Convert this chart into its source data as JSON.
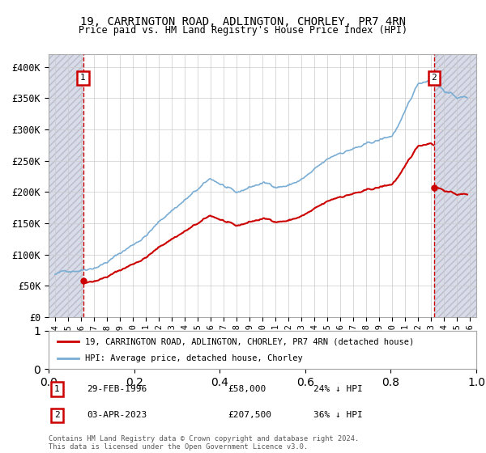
{
  "title": "19, CARRINGTON ROAD, ADLINGTON, CHORLEY, PR7 4RN",
  "subtitle": "Price paid vs. HM Land Registry's House Price Index (HPI)",
  "hpi_color": "#7aadd4",
  "price_color": "#cc0000",
  "sale1": {
    "date_num": 1996.16,
    "price": 58000,
    "label": "1",
    "date_str": "29-FEB-1996",
    "pct": "24% ↓ HPI"
  },
  "sale2": {
    "date_num": 2023.25,
    "price": 207500,
    "label": "2",
    "date_str": "03-APR-2023",
    "pct": "36% ↓ HPI"
  },
  "xmin": 1993.5,
  "xmax": 2026.5,
  "ymin": 0,
  "ymax": 420000,
  "yticks": [
    0,
    50000,
    100000,
    150000,
    200000,
    250000,
    300000,
    350000,
    400000
  ],
  "ytick_labels": [
    "£0",
    "£50K",
    "£100K",
    "£150K",
    "£200K",
    "£250K",
    "£300K",
    "£350K",
    "£400K"
  ],
  "xticks": [
    1994,
    1995,
    1996,
    1997,
    1998,
    1999,
    2000,
    2001,
    2002,
    2003,
    2004,
    2005,
    2006,
    2007,
    2008,
    2009,
    2010,
    2011,
    2012,
    2013,
    2014,
    2015,
    2016,
    2017,
    2018,
    2019,
    2020,
    2021,
    2022,
    2023,
    2024,
    2025,
    2026
  ],
  "legend1": "19, CARRINGTON ROAD, ADLINGTON, CHORLEY, PR7 4RN (detached house)",
  "legend2": "HPI: Average price, detached house, Chorley",
  "footer": "Contains HM Land Registry data © Crown copyright and database right 2024.\nThis data is licensed under the Open Government Licence v3.0.",
  "hatch_color": "#d8dce8",
  "grid_color": "#cccccc",
  "vline_color": "#cc0000",
  "hpi_xp": [
    1994,
    1995,
    1996,
    1997,
    1998,
    1999,
    2000,
    2001,
    2002,
    2003,
    2004,
    2005,
    2006,
    2007,
    2008,
    2009,
    2010,
    2011,
    2012,
    2013,
    2014,
    2015,
    2016,
    2017,
    2018,
    2019,
    2020,
    2021,
    2022,
    2023,
    2024,
    2025
  ],
  "hpi_fp": [
    68000,
    73000,
    78000,
    85000,
    95000,
    108000,
    122000,
    138000,
    158000,
    178000,
    195000,
    210000,
    225000,
    215000,
    198000,
    208000,
    215000,
    210000,
    213000,
    222000,
    235000,
    248000,
    260000,
    268000,
    272000,
    278000,
    285000,
    320000,
    365000,
    375000,
    360000,
    348000
  ]
}
